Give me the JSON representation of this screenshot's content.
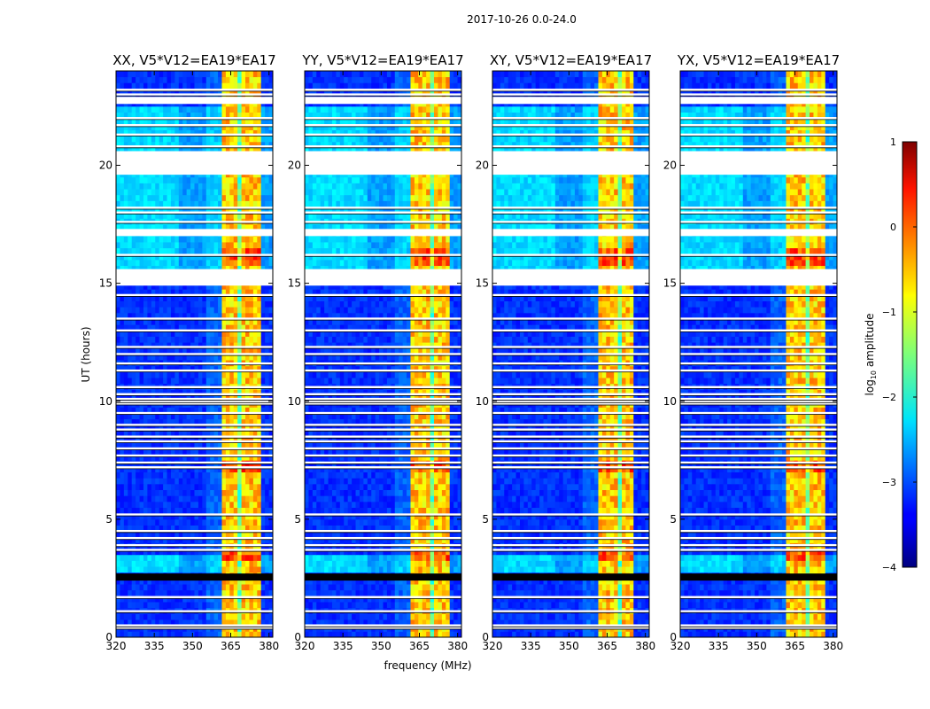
{
  "figure": {
    "suptitle": "2017-10-26 0.0-24.0",
    "xlabel": "frequency (MHz)",
    "ylabel": "UT (hours)"
  },
  "chart_data": {
    "type": "heatmap",
    "title": "2017-10-26 0.0-24.0",
    "xlabel": "frequency (MHz)",
    "ylabel": "UT (hours)",
    "xlim": [
      320,
      381.5
    ],
    "ylim": [
      0,
      24
    ],
    "x_ticks": [
      320,
      335,
      350,
      365,
      380
    ],
    "y_ticks": [
      0,
      5,
      10,
      15,
      20
    ],
    "panels": [
      {
        "title": "XX, V5*V12=EA19*EA17",
        "rfi_band": [
          361,
          377
        ],
        "band_edge_soft": false
      },
      {
        "title": "YY, V5*V12=EA19*EA17",
        "rfi_band": [
          362,
          377
        ],
        "band_edge_soft": false
      },
      {
        "title": "XY, V5*V12=EA19*EA17",
        "rfi_band": [
          362,
          376
        ],
        "band_edge_soft": true
      },
      {
        "title": "YX, V5*V12=EA19*EA17",
        "rfi_band": [
          362,
          377
        ],
        "band_edge_soft": true
      }
    ],
    "colorbar": {
      "label": "log10 amplitude",
      "label_main": "log",
      "label_sub": "10",
      "label_rest": " amplitude",
      "range": [
        -4,
        1
      ],
      "ticks": [
        1,
        0,
        -1,
        -2,
        -3,
        -4
      ],
      "tick_labels": [
        "1",
        "0",
        "−1",
        "−2",
        "−3",
        "−4"
      ],
      "colormap": "jet"
    },
    "blank_intervals_hours": [
      [
        19.6,
        20.6
      ],
      [
        14.9,
        15.6
      ],
      [
        17.0,
        17.3
      ],
      [
        22.6,
        22.9
      ]
    ],
    "saturated_intervals_hours": [
      [
        2.4,
        2.7
      ]
    ],
    "missing_lines_hours": [
      0.4,
      0.5,
      1.1,
      1.7,
      3.7,
      3.9,
      4.2,
      4.5,
      5.2,
      7.2,
      7.4,
      7.7,
      8.0,
      8.3,
      8.5,
      8.8,
      9.0,
      9.5,
      9.9,
      10.0,
      10.1,
      10.3,
      10.6,
      11.3,
      11.6,
      12.0,
      12.3,
      13.0,
      13.5,
      14.5,
      16.2,
      17.6,
      18.0,
      18.2,
      20.8,
      21.3,
      21.7,
      22.0,
      23.0,
      23.2
    ]
  }
}
